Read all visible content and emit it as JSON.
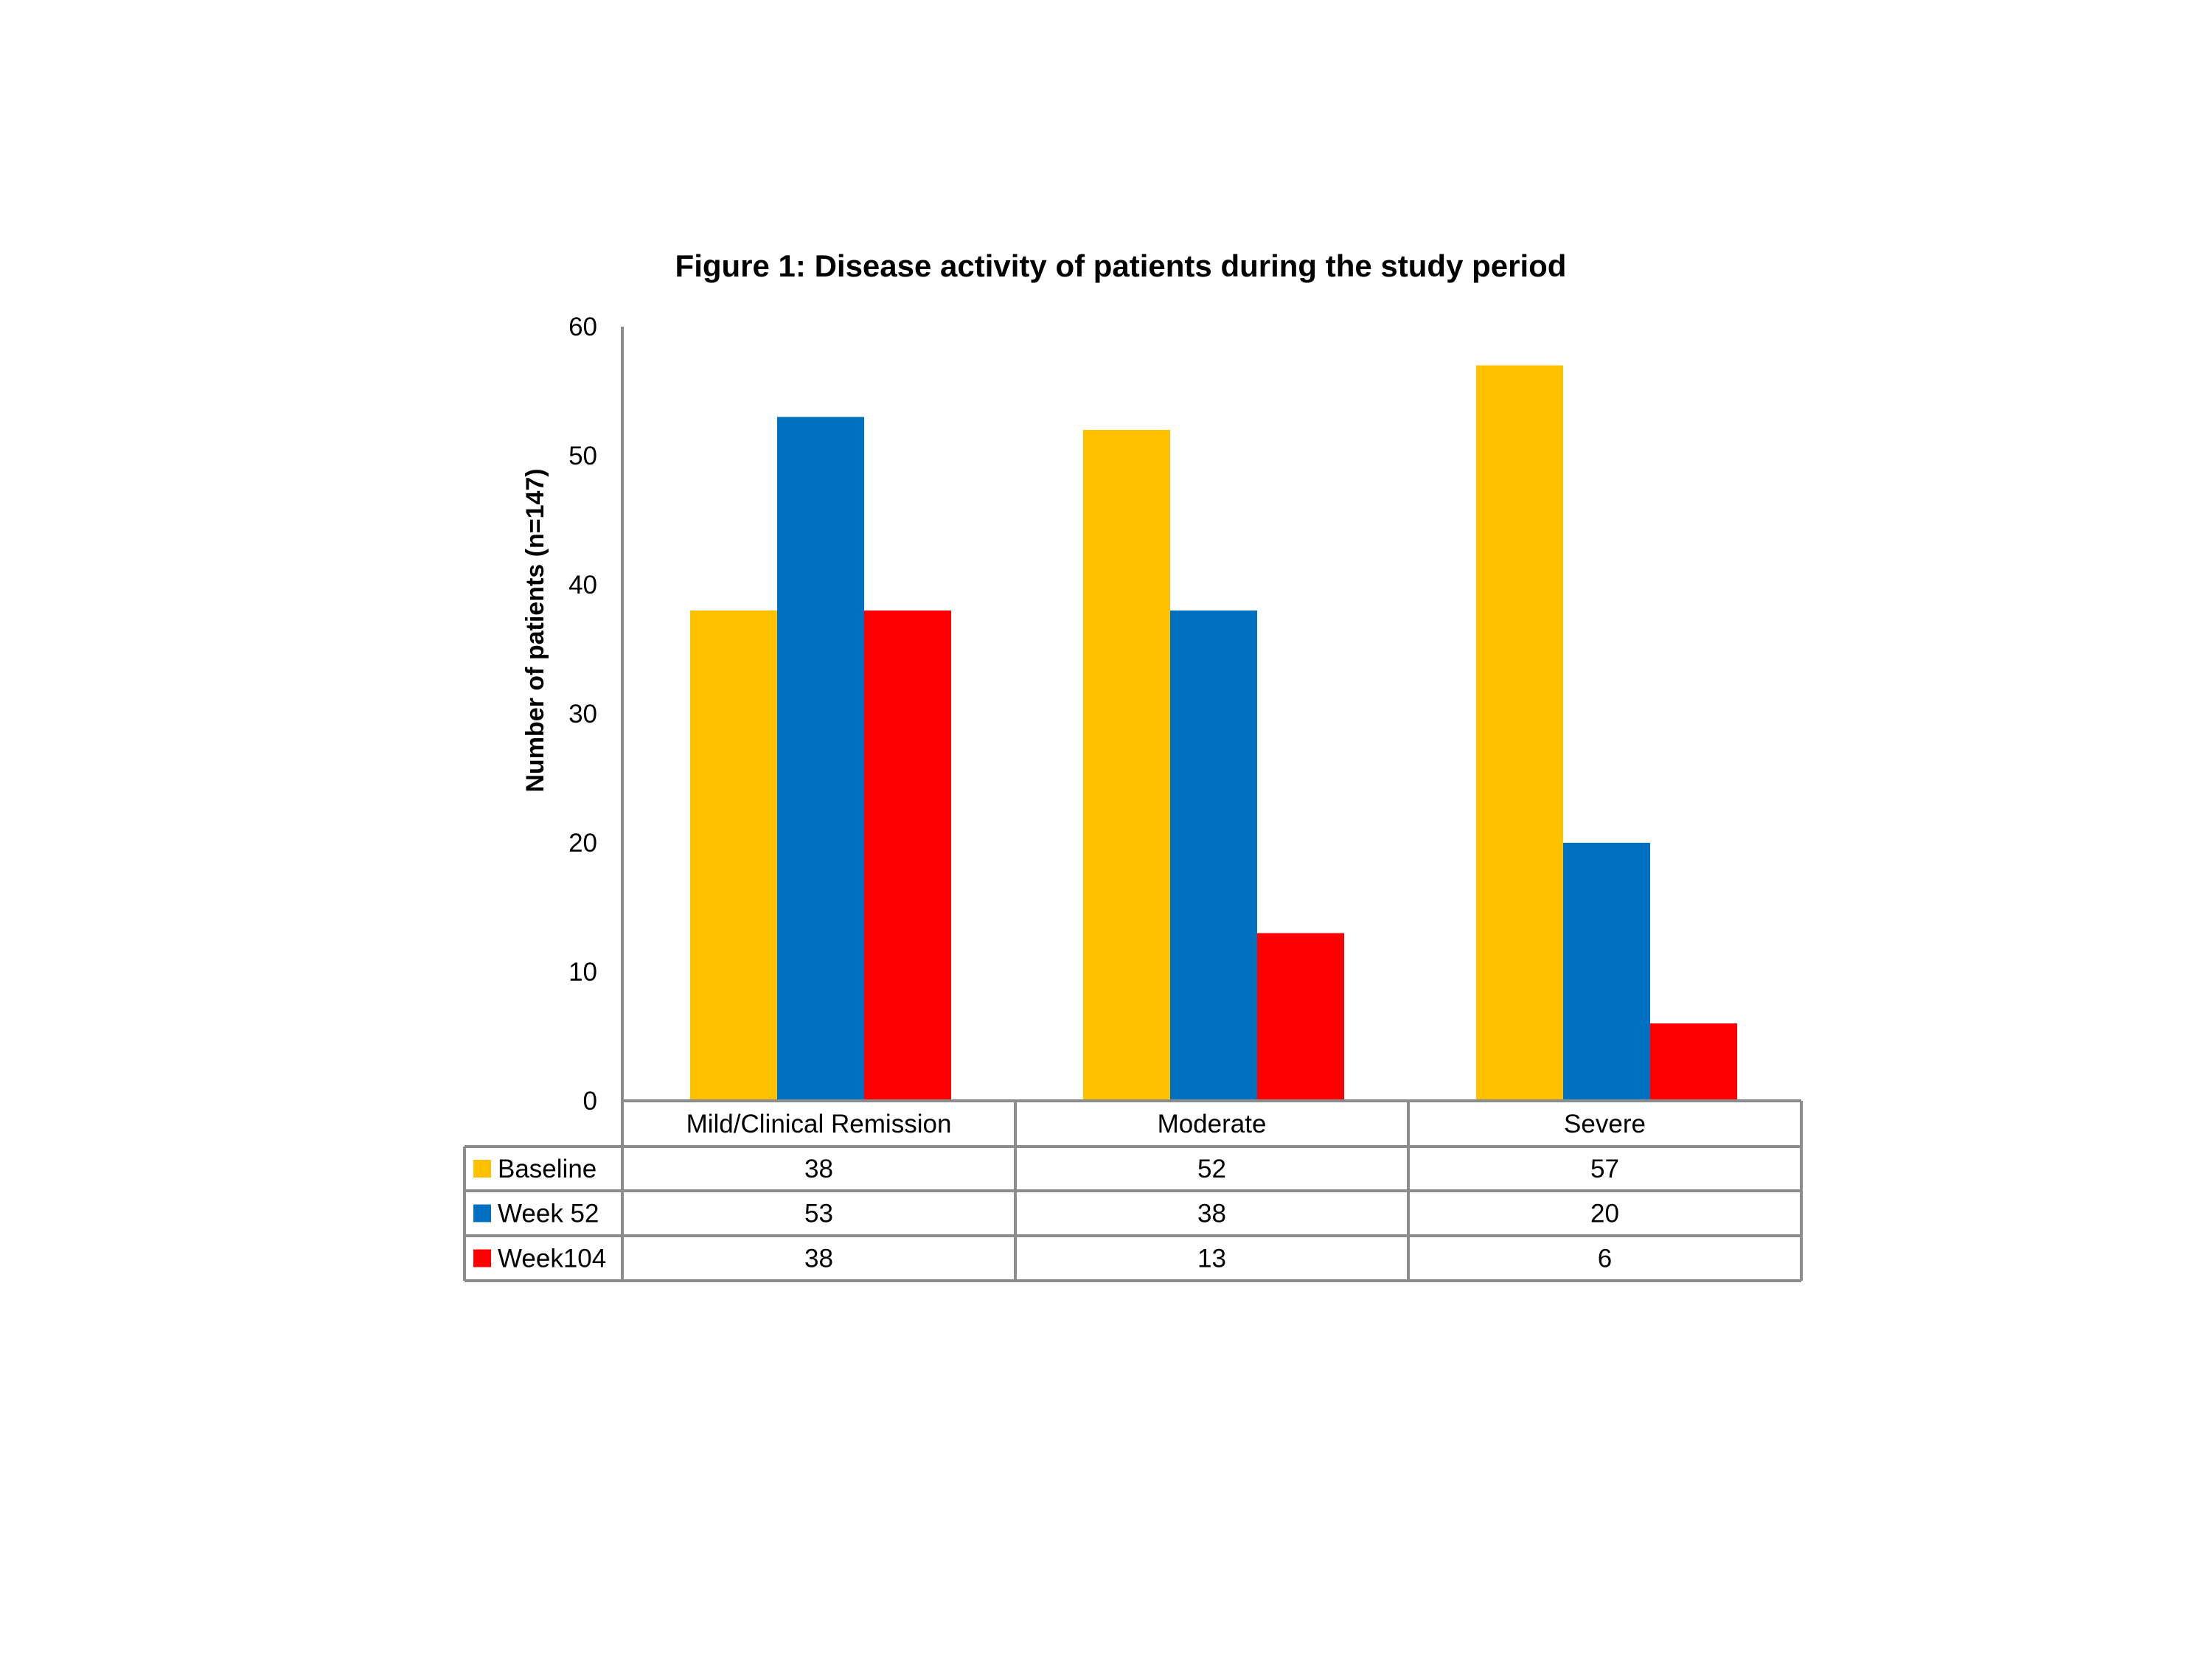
{
  "chart_data": {
    "type": "bar",
    "title": "Figure 1: Disease activity of patients during the study period",
    "xlabel": "",
    "ylabel": "Number of patients (n=147)",
    "ylim": [
      0,
      60
    ],
    "yticks": [
      "0",
      "10",
      "20",
      "30",
      "40",
      "50",
      "60"
    ],
    "categories": [
      "Mild/Clinical Remission",
      "Moderate",
      "Severe"
    ],
    "series": [
      {
        "name": "Baseline",
        "values": [
          38,
          52,
          57
        ],
        "color": "#FFC000"
      },
      {
        "name": "Week 52",
        "values": [
          53,
          38,
          20
        ],
        "color": "#0070C0"
      },
      {
        "name": "Week104",
        "values": [
          38,
          13,
          6
        ],
        "color": "#FF0000"
      }
    ],
    "legend": "data-table",
    "grid": false
  }
}
